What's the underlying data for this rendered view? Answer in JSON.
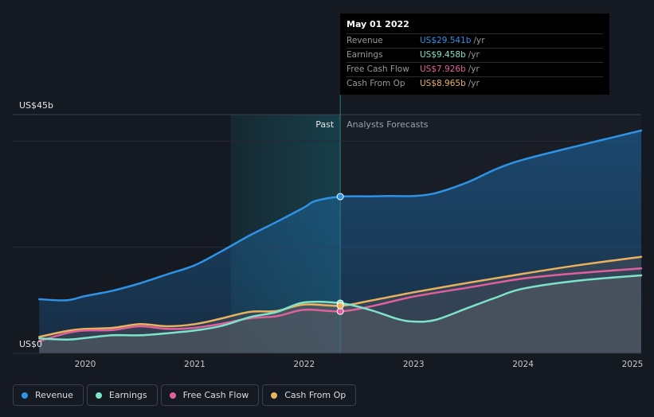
{
  "chart_data": {
    "type": "area",
    "y_axis_labels": {
      "top": "US$45b",
      "bottom": "US$0"
    },
    "ylim": [
      0,
      45
    ],
    "xlim": [
      2019.58,
      2025.08
    ],
    "x_ticks": [
      "2020",
      "2021",
      "2022",
      "2023",
      "2024",
      "2025"
    ],
    "x_tick_values": [
      2020,
      2021,
      2022,
      2023,
      2024,
      2025
    ],
    "past_label": "Past",
    "forecast_label": "Analysts Forecasts",
    "divider_x": 2022.33,
    "shade_start_x": 2021.33,
    "series": [
      {
        "name": "Revenue",
        "color": "#2e93e5",
        "points": [
          [
            2019.58,
            10.2
          ],
          [
            2019.83,
            10.0
          ],
          [
            2020.0,
            10.8
          ],
          [
            2020.25,
            11.8
          ],
          [
            2020.5,
            13.2
          ],
          [
            2020.75,
            14.9
          ],
          [
            2021.0,
            16.6
          ],
          [
            2021.25,
            19.3
          ],
          [
            2021.5,
            22.2
          ],
          [
            2021.75,
            24.8
          ],
          [
            2022.0,
            27.5
          ],
          [
            2022.1,
            28.7
          ],
          [
            2022.33,
            29.541
          ],
          [
            2022.6,
            29.6
          ],
          [
            2022.8,
            29.65
          ],
          [
            2023.0,
            29.65
          ],
          [
            2023.2,
            30.2
          ],
          [
            2023.5,
            32.3
          ],
          [
            2023.75,
            34.7
          ],
          [
            2024.0,
            36.5
          ],
          [
            2024.5,
            39.1
          ],
          [
            2025.08,
            42.0
          ]
        ]
      },
      {
        "name": "Earnings",
        "color": "#7de3c9",
        "points": [
          [
            2019.58,
            2.8
          ],
          [
            2019.83,
            2.6
          ],
          [
            2020.0,
            2.9
          ],
          [
            2020.25,
            3.4
          ],
          [
            2020.5,
            3.4
          ],
          [
            2020.75,
            3.8
          ],
          [
            2021.0,
            4.3
          ],
          [
            2021.25,
            5.2
          ],
          [
            2021.5,
            6.8
          ],
          [
            2021.75,
            7.8
          ],
          [
            2022.0,
            9.6
          ],
          [
            2022.33,
            9.458
          ],
          [
            2022.6,
            8.2
          ],
          [
            2022.85,
            6.5
          ],
          [
            2023.0,
            6.0
          ],
          [
            2023.2,
            6.3
          ],
          [
            2023.5,
            8.6
          ],
          [
            2023.75,
            10.5
          ],
          [
            2024.0,
            12.2
          ],
          [
            2024.5,
            13.7
          ],
          [
            2025.08,
            14.7
          ]
        ]
      },
      {
        "name": "Free Cash Flow",
        "color": "#e0609c",
        "points": [
          [
            2019.58,
            2.3
          ],
          [
            2019.83,
            3.8
          ],
          [
            2020.0,
            4.3
          ],
          [
            2020.25,
            4.4
          ],
          [
            2020.5,
            5.1
          ],
          [
            2020.75,
            4.6
          ],
          [
            2021.0,
            4.8
          ],
          [
            2021.25,
            5.6
          ],
          [
            2021.5,
            6.6
          ],
          [
            2021.75,
            7.0
          ],
          [
            2022.0,
            8.2
          ],
          [
            2022.33,
            7.926
          ],
          [
            2022.6,
            8.8
          ],
          [
            2023.0,
            10.7
          ],
          [
            2023.5,
            12.4
          ],
          [
            2024.0,
            14.1
          ],
          [
            2024.5,
            15.1
          ],
          [
            2025.08,
            16.0
          ]
        ]
      },
      {
        "name": "Cash From Op",
        "color": "#e8b25f",
        "points": [
          [
            2019.58,
            3.1
          ],
          [
            2019.83,
            4.2
          ],
          [
            2020.0,
            4.6
          ],
          [
            2020.25,
            4.8
          ],
          [
            2020.5,
            5.5
          ],
          [
            2020.75,
            5.1
          ],
          [
            2021.0,
            5.5
          ],
          [
            2021.25,
            6.6
          ],
          [
            2021.5,
            7.8
          ],
          [
            2021.75,
            8.0
          ],
          [
            2022.0,
            9.2
          ],
          [
            2022.33,
            8.965
          ],
          [
            2022.6,
            9.9
          ],
          [
            2023.0,
            11.5
          ],
          [
            2023.5,
            13.3
          ],
          [
            2024.0,
            15.0
          ],
          [
            2024.5,
            16.6
          ],
          [
            2025.08,
            18.2
          ]
        ]
      }
    ],
    "highlight": {
      "x": 2022.33
    }
  },
  "tooltip": {
    "date": "May 01 2022",
    "rows": [
      {
        "label": "Revenue",
        "value": "US$29.541b",
        "unit": "/yr",
        "color": "#2e93e5"
      },
      {
        "label": "Earnings",
        "value": "US$9.458b",
        "unit": "/yr",
        "color": "#7de3c9"
      },
      {
        "label": "Free Cash Flow",
        "value": "US$7.926b",
        "unit": "/yr",
        "color": "#e0609c"
      },
      {
        "label": "Cash From Op",
        "value": "US$8.965b",
        "unit": "/yr",
        "color": "#e8b25f"
      }
    ]
  },
  "legend": [
    {
      "label": "Revenue",
      "color": "#2e93e5"
    },
    {
      "label": "Earnings",
      "color": "#7de3c9"
    },
    {
      "label": "Free Cash Flow",
      "color": "#e0609c"
    },
    {
      "label": "Cash From Op",
      "color": "#e8b25f"
    }
  ]
}
